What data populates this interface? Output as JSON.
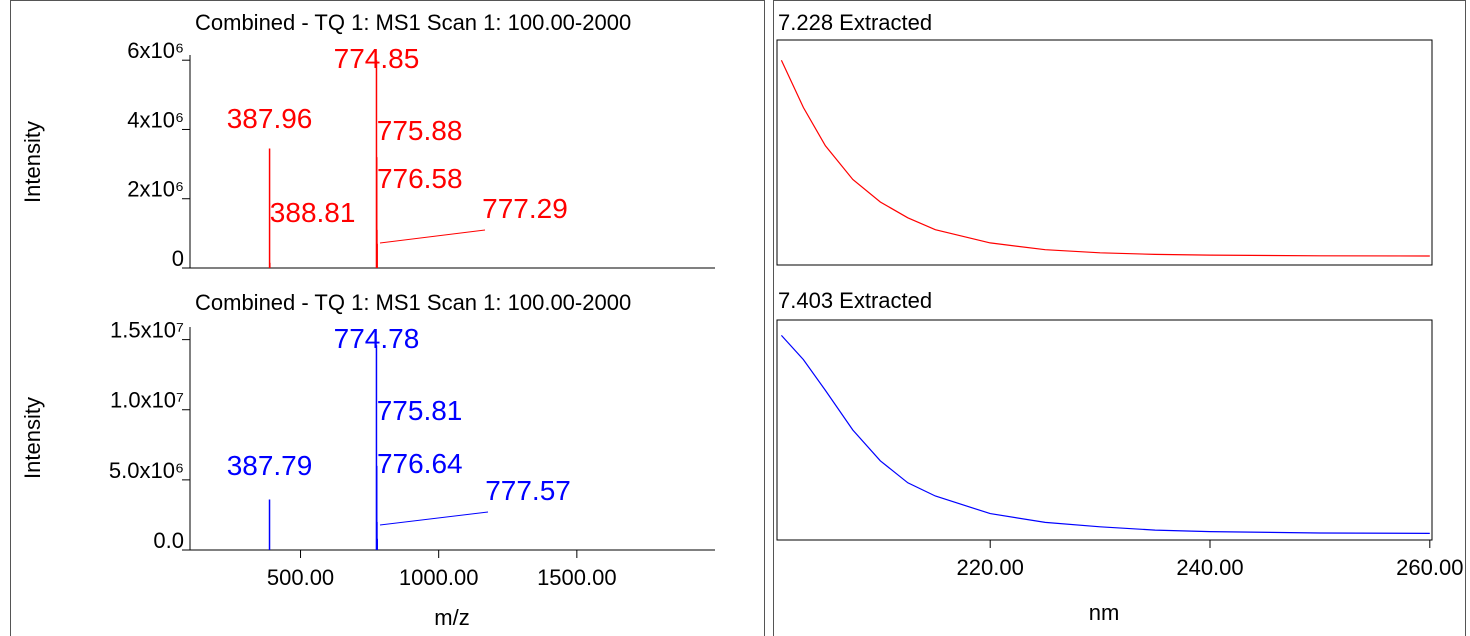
{
  "chart_data": [
    {
      "type": "spectrum",
      "title": "Combined - TQ 1: MS1 Scan 1: 100.00-2000",
      "xlabel": "m/z",
      "ylabel": "Intensity",
      "color": "#ff0000",
      "x": [
        387.96,
        388.81,
        774.85,
        775.88,
        776.58,
        777.29
      ],
      "values": [
        3450000,
        150000,
        6000000,
        3200000,
        1100000,
        700000
      ],
      "xlim": [
        100,
        2000
      ],
      "ylim": [
        0,
        6150000
      ],
      "yticks": [
        0,
        {
          "value": 2000000,
          "label": "2x10⁶"
        },
        {
          "value": 4000000,
          "label": "4x10⁶"
        },
        {
          "value": 6000000,
          "label": "6x10⁶"
        }
      ]
    },
    {
      "type": "spectrum",
      "title": "Combined - TQ 1: MS1 Scan 1: 100.00-2000",
      "xlabel": "m/z",
      "ylabel": "Intensity",
      "color": "#0000ff",
      "x": [
        387.79,
        774.78,
        775.81,
        776.64,
        777.57
      ],
      "values": [
        3600000,
        14600000,
        6000000,
        2000000,
        800000
      ],
      "xlim": [
        100,
        2000
      ],
      "ylim": [
        0,
        15900000
      ],
      "xticks": [
        {
          "value": 500,
          "label": "500.00"
        },
        {
          "value": 1000,
          "label": "1000.00"
        },
        {
          "value": 1500,
          "label": "1500.00"
        }
      ],
      "yticks": [
        {
          "value": 0,
          "label": "0.0"
        },
        {
          "value": 5000000,
          "label": "5.0x10⁶"
        },
        {
          "value": 10000000,
          "label": "1.0x10⁷"
        },
        {
          "value": 15000000,
          "label": "1.5x10⁷"
        }
      ]
    },
    {
      "type": "line",
      "title": "7.228 Extracted",
      "color": "#ff0000",
      "x": [
        201,
        203,
        205,
        207.5,
        210,
        212.5,
        215,
        220,
        225,
        230,
        235,
        240,
        250,
        260
      ],
      "values": [
        0.91,
        0.7,
        0.53,
        0.38,
        0.28,
        0.21,
        0.157,
        0.098,
        0.068,
        0.054,
        0.047,
        0.044,
        0.041,
        0.04
      ],
      "xlim": [
        200.6,
        260.2
      ],
      "ylim": [
        0,
        1
      ]
    },
    {
      "type": "line",
      "title": "7.403 Extracted",
      "xlabel": "nm",
      "color": "#0000ff",
      "x": [
        201,
        203,
        205,
        207.5,
        210,
        212.5,
        215,
        220,
        225,
        230,
        235,
        240,
        250,
        260
      ],
      "values": [
        0.93,
        0.82,
        0.68,
        0.5,
        0.36,
        0.26,
        0.2,
        0.12,
        0.08,
        0.06,
        0.045,
        0.038,
        0.032,
        0.03
      ],
      "xlim": [
        200.6,
        260.2
      ],
      "ylim": [
        0,
        1
      ],
      "xticks": [
        {
          "value": 220,
          "label": "220.00"
        },
        {
          "value": 240,
          "label": "240.00"
        },
        {
          "value": 260,
          "label": "260.00"
        }
      ]
    }
  ]
}
